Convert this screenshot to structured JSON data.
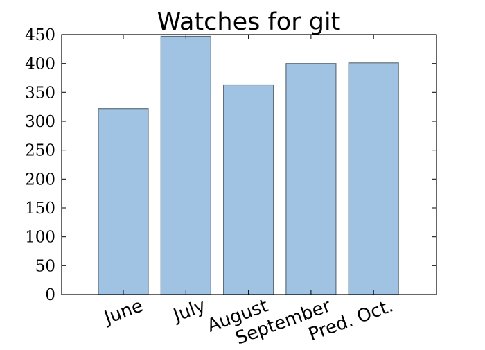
{
  "chart_data": {
    "type": "bar",
    "title": "Watches for git",
    "xlabel": "",
    "ylabel": "",
    "categories": [
      "June",
      "July",
      "August",
      "September",
      "Pred. Oct."
    ],
    "values": [
      322,
      447,
      363,
      400,
      401
    ],
    "ylim": [
      0,
      450
    ],
    "yticks": [
      0,
      50,
      100,
      150,
      200,
      250,
      300,
      350,
      400,
      450
    ],
    "grid": false,
    "colors": {
      "bar_fill": "#a0c3e3",
      "bar_edge": "#5f6f7a",
      "axis": "#000000"
    }
  }
}
